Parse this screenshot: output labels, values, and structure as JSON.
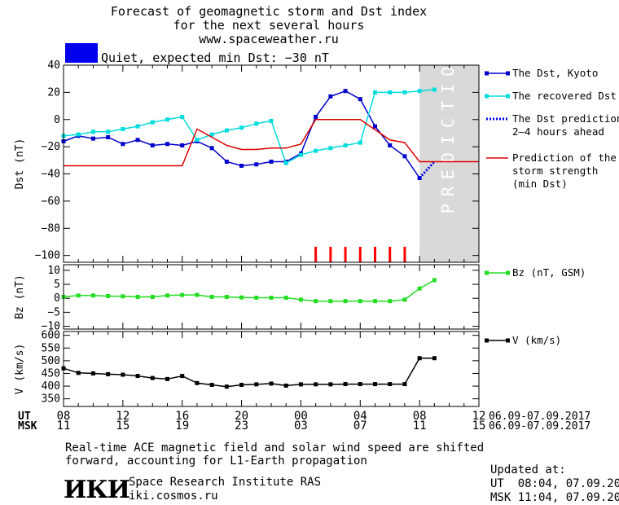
{
  "header": {
    "title_line1": "Forecast of geomagnetic storm and Dst index",
    "title_line2": "for the next several hours",
    "url": "www.spaceweather.ru",
    "status_text": "Quiet, expected min Dst: −30 nT",
    "status_color": "#0000ee"
  },
  "footer": {
    "note_line1": "Real-time ACE magnetic field and solar wind speed are shifted",
    "note_line2": "forward, accounting for L1-Earth propagation",
    "institute": "Space Research Institute RAS",
    "site": "iki.cosmos.ru",
    "logo_text": "ИКИ",
    "updated_label": "Updated at:",
    "updated_ut": "UT  08:04, 07.09.2017",
    "updated_msk": "MSK 11:04, 07.09.2017"
  },
  "chart_data": {
    "type": "line",
    "x_unit": "hour UT",
    "time_axis": {
      "ut_label": "UT",
      "msk_label": "MSK",
      "xlim": [
        8,
        36
      ],
      "ut_ticks": [
        "08",
        "12",
        "16",
        "20",
        "00",
        "04",
        "08",
        "12"
      ],
      "msk_ticks": [
        "11",
        "15",
        "19",
        "23",
        "03",
        "07",
        "11",
        "15"
      ],
      "ut_range": "06.09-07.09.2017",
      "msk_range": "06.09-07.09.2017"
    },
    "prediction_zone": {
      "from": 32,
      "to": 36,
      "label": "PREDICTION"
    },
    "panels": [
      {
        "ylabel": "Dst (nT)",
        "ylim": [
          -105,
          40
        ],
        "ticks": [
          40,
          20,
          0,
          -20,
          -40,
          -60,
          -80,
          -100
        ],
        "series": [
          {
            "name": "The Dst, Kyoto",
            "color": "#0000cc",
            "marker": "square",
            "x": [
              8,
              9,
              10,
              11,
              12,
              13,
              14,
              15,
              16,
              17,
              18,
              19,
              20,
              21,
              22,
              23,
              24,
              25,
              26,
              27,
              28,
              29,
              30,
              31,
              32
            ],
            "y": [
              -16,
              -12,
              -14,
              -13,
              -18,
              -15,
              -19,
              -18,
              -19,
              -16,
              -21,
              -31,
              -34,
              -33,
              -31,
              -31,
              -25,
              2,
              17,
              21,
              15,
              -5,
              -19,
              -27,
              -43
            ]
          },
          {
            "name": "The recovered Dst",
            "color": "#00dddd",
            "marker": "square",
            "x": [
              8,
              9,
              10,
              11,
              12,
              13,
              14,
              15,
              16,
              17,
              18,
              19,
              20,
              21,
              22,
              23,
              24,
              25,
              26,
              27,
              28,
              29,
              30,
              31,
              32,
              33
            ],
            "y": [
              -12,
              -11,
              -9,
              -9,
              -7,
              -5,
              -2,
              0,
              2,
              -15,
              -11,
              -8,
              -6,
              -3,
              -1,
              -32,
              -26,
              -23,
              -21,
              -19,
              -17,
              20,
              20,
              20,
              21,
              22
            ]
          },
          {
            "name": "The Dst prediction\n2–4 hours ahead",
            "color": "#0000ee",
            "dashed": true,
            "x": [
              32,
              33
            ],
            "y": [
              -43,
              -31
            ]
          },
          {
            "name": "Prediction of the\nstorm strength\n(min Dst)",
            "color": "#dd0000",
            "x": [
              8,
              16,
              17,
              19,
              20,
              21,
              22,
              23,
              24,
              25,
              28,
              30,
              31,
              32,
              33,
              36
            ],
            "y": [
              -34,
              -34,
              -7,
              -19,
              -22,
              -22,
              -21,
              -21,
              -18,
              0,
              0,
              -15,
              -17,
              -31,
              -31,
              -31
            ]
          }
        ],
        "storm_markers": {
          "color": "#ff0000",
          "x": [
            25,
            26,
            27,
            28,
            29,
            30,
            31
          ]
        }
      },
      {
        "ylabel": "Bz (nT)",
        "ylim": [
          -11,
          12
        ],
        "ticks": [
          10,
          5,
          0,
          -5,
          -10
        ],
        "series": [
          {
            "name": "Bz (nT, GSM)",
            "color": "#22dd22",
            "marker": "square",
            "x": [
              8,
              9,
              10,
              11,
              12,
              13,
              14,
              15,
              16,
              17,
              18,
              19,
              20,
              21,
              22,
              23,
              24,
              25,
              26,
              27,
              28,
              29,
              30,
              31,
              32,
              33
            ],
            "y": [
              0.5,
              1,
              1,
              0.8,
              0.7,
              0.5,
              0.5,
              1,
              1.2,
              1.2,
              0.5,
              0.5,
              0.3,
              0.2,
              0.2,
              0.2,
              -0.5,
              -1,
              -1,
              -1,
              -1,
              -1,
              -1,
              -0.5,
              3.5,
              6.5
            ]
          }
        ]
      },
      {
        "ylabel": "V (km/s)",
        "ylim": [
          320,
          615
        ],
        "ticks": [
          600,
          550,
          500,
          450,
          400,
          350
        ],
        "series": [
          {
            "name": "V (km/s)",
            "color": "#000000",
            "marker": "square",
            "x": [
              8,
              9,
              10,
              11,
              12,
              13,
              14,
              15,
              16,
              17,
              18,
              19,
              20,
              21,
              22,
              23,
              24,
              25,
              26,
              27,
              28,
              29,
              30,
              31,
              32,
              33
            ],
            "y": [
              470,
              452,
              450,
              447,
              445,
              440,
              432,
              428,
              440,
              412,
              405,
              398,
              405,
              407,
              410,
              402,
              407,
              407,
              407,
              408,
              408,
              408,
              408,
              408,
              510,
              510
            ]
          }
        ]
      }
    ]
  }
}
